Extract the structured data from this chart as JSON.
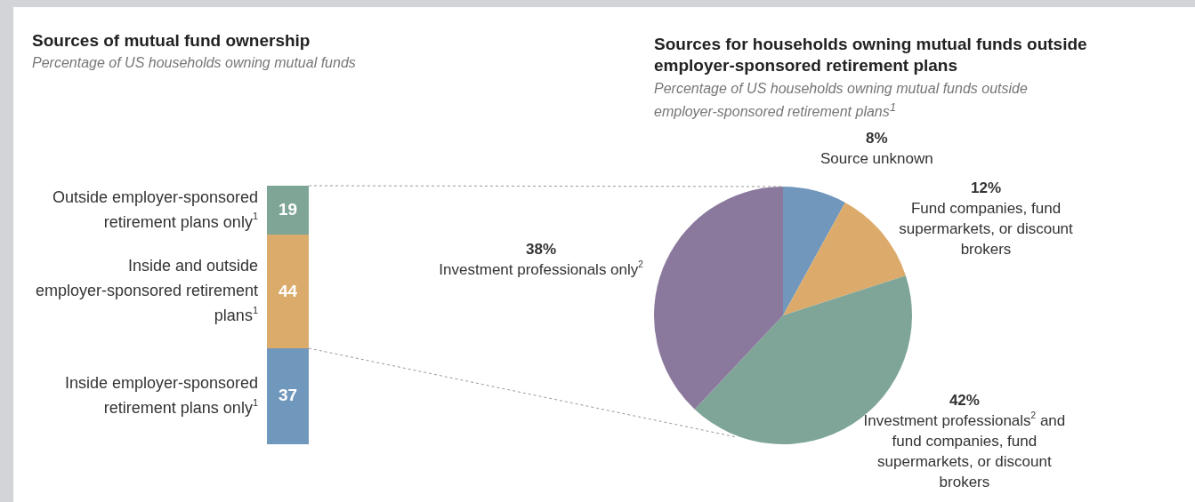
{
  "chart_data": [
    {
      "type": "bar",
      "stacked": true,
      "title": "Sources of mutual fund ownership",
      "subtitle": "Percentage of US households owning mutual funds",
      "categories": [
        null
      ],
      "tick_labels": false,
      "data_labels": true,
      "series": [
        {
          "name": "Inside employer-sponsored retirement plans only$^{1}$",
          "color": "#7097bc",
          "values": [
            37
          ]
        },
        {
          "name": "Inside and outside employer-sponsored retirement plans$^{1}$",
          "color": "#dbab6b",
          "values": [
            44
          ]
        },
        {
          "name": "Outside employer-sponsored retirement plans only$^{1}$",
          "color": "#7ea596",
          "values": [
            19
          ]
        }
      ]
    },
    {
      "type": "pie",
      "title": "Sources for households owning mutual funds outside employer-sponsored retirement plans",
      "subtitle": "Percentage of US households owning mutual funds outside employer-sponsored retirement plans$^{1}$",
      "categories": [
        "Source unknown",
        "Fund companies, fund supermarkets, or discount brokers",
        "Investment professionals$^{2}$ and fund companies, fund supermarkets, or discount brokers",
        "Investment professionals only$^{2}$"
      ],
      "values": [
        8,
        12,
        42,
        38
      ],
      "colors": [
        "#7197bd",
        "#dcab6b",
        "#7ea597",
        "#8a799c"
      ],
      "value_labels": [
        "8%",
        "12%",
        "42%",
        "38%"
      ]
    }
  ]
}
